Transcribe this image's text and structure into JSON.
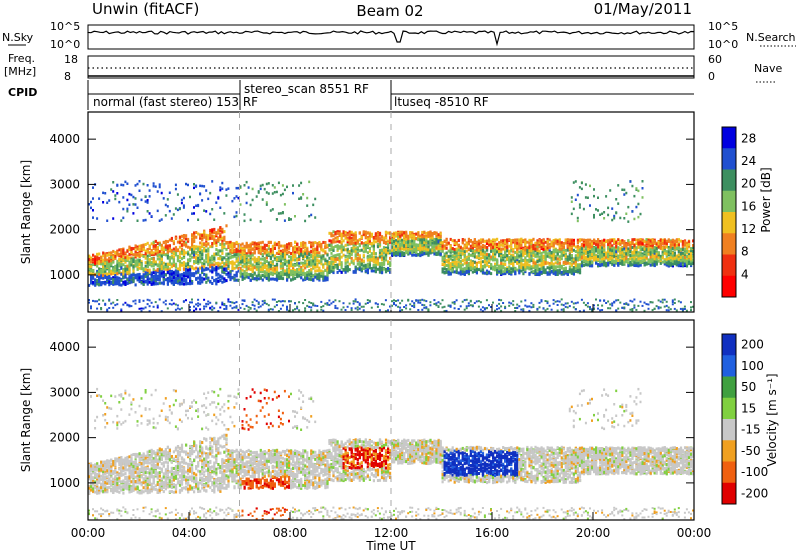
{
  "header": {
    "title_left": "Unwin (fitACF)",
    "title_center": "Beam 02",
    "title_right": "01/May/2011"
  },
  "top_panels": {
    "nsky_label": "N.Sky",
    "nsky_ticks": [
      "10^5",
      "10^0"
    ],
    "nsearch_label": "N.Search",
    "nsearch_ticks": [
      "10^5",
      "10^0"
    ],
    "freq_label": "Freq.",
    "freq_unit": "[MHz]",
    "freq_ticks": [
      "18",
      "8"
    ],
    "nave_label": "Nave",
    "nave_ticks": [
      "60",
      "0"
    ],
    "cpid_label": "CPID"
  },
  "cpid_segments": [
    {
      "label": "normal (fast stereo) 153 RF",
      "start_hour": 0,
      "end_hour": 6.0
    },
    {
      "label": "stereo_scan 8551 RF",
      "start_hour": 6.0,
      "end_hour": 12.0
    },
    {
      "label": "ltuseq -8510 RF",
      "start_hour": 12.0,
      "end_hour": 24.0
    }
  ],
  "chart_data": [
    {
      "type": "heatmap",
      "ylabel": "Slant Range [km]",
      "y_ticks": [
        1000,
        2000,
        3000,
        4000
      ],
      "ylim": [
        180,
        4600
      ],
      "xlim": [
        0,
        24
      ],
      "colorbar": {
        "label": "Power [dB]",
        "ticks": [
          4,
          8,
          12,
          16,
          20,
          24,
          28
        ],
        "range": [
          0,
          30
        ],
        "colors": [
          "#0000e0",
          "#2050d0",
          "#3d8f60",
          "#7fc060",
          "#f0c020",
          "#f08020",
          "#f03010",
          "#ff0000"
        ]
      }
    },
    {
      "type": "heatmap",
      "ylabel": "Slant Range [km]",
      "y_ticks": [
        1000,
        2000,
        3000,
        4000
      ],
      "ylim": [
        180,
        4600
      ],
      "xlim": [
        0,
        24
      ],
      "xlabel": "Time UT",
      "x_tick_labels": [
        "00:00",
        "04:00",
        "08:00",
        "12:00",
        "16:00",
        "20:00",
        "00:00"
      ],
      "colorbar": {
        "label": "Velocity [m s⁻¹]",
        "ticks": [
          200,
          100,
          50,
          15,
          -15,
          -50,
          -100,
          -200
        ],
        "colors": [
          "#1030c0",
          "#2060e0",
          "#40a040",
          "#80d040",
          "#c8c8c8",
          "#f0a020",
          "#f06010",
          "#e00000"
        ]
      }
    }
  ]
}
